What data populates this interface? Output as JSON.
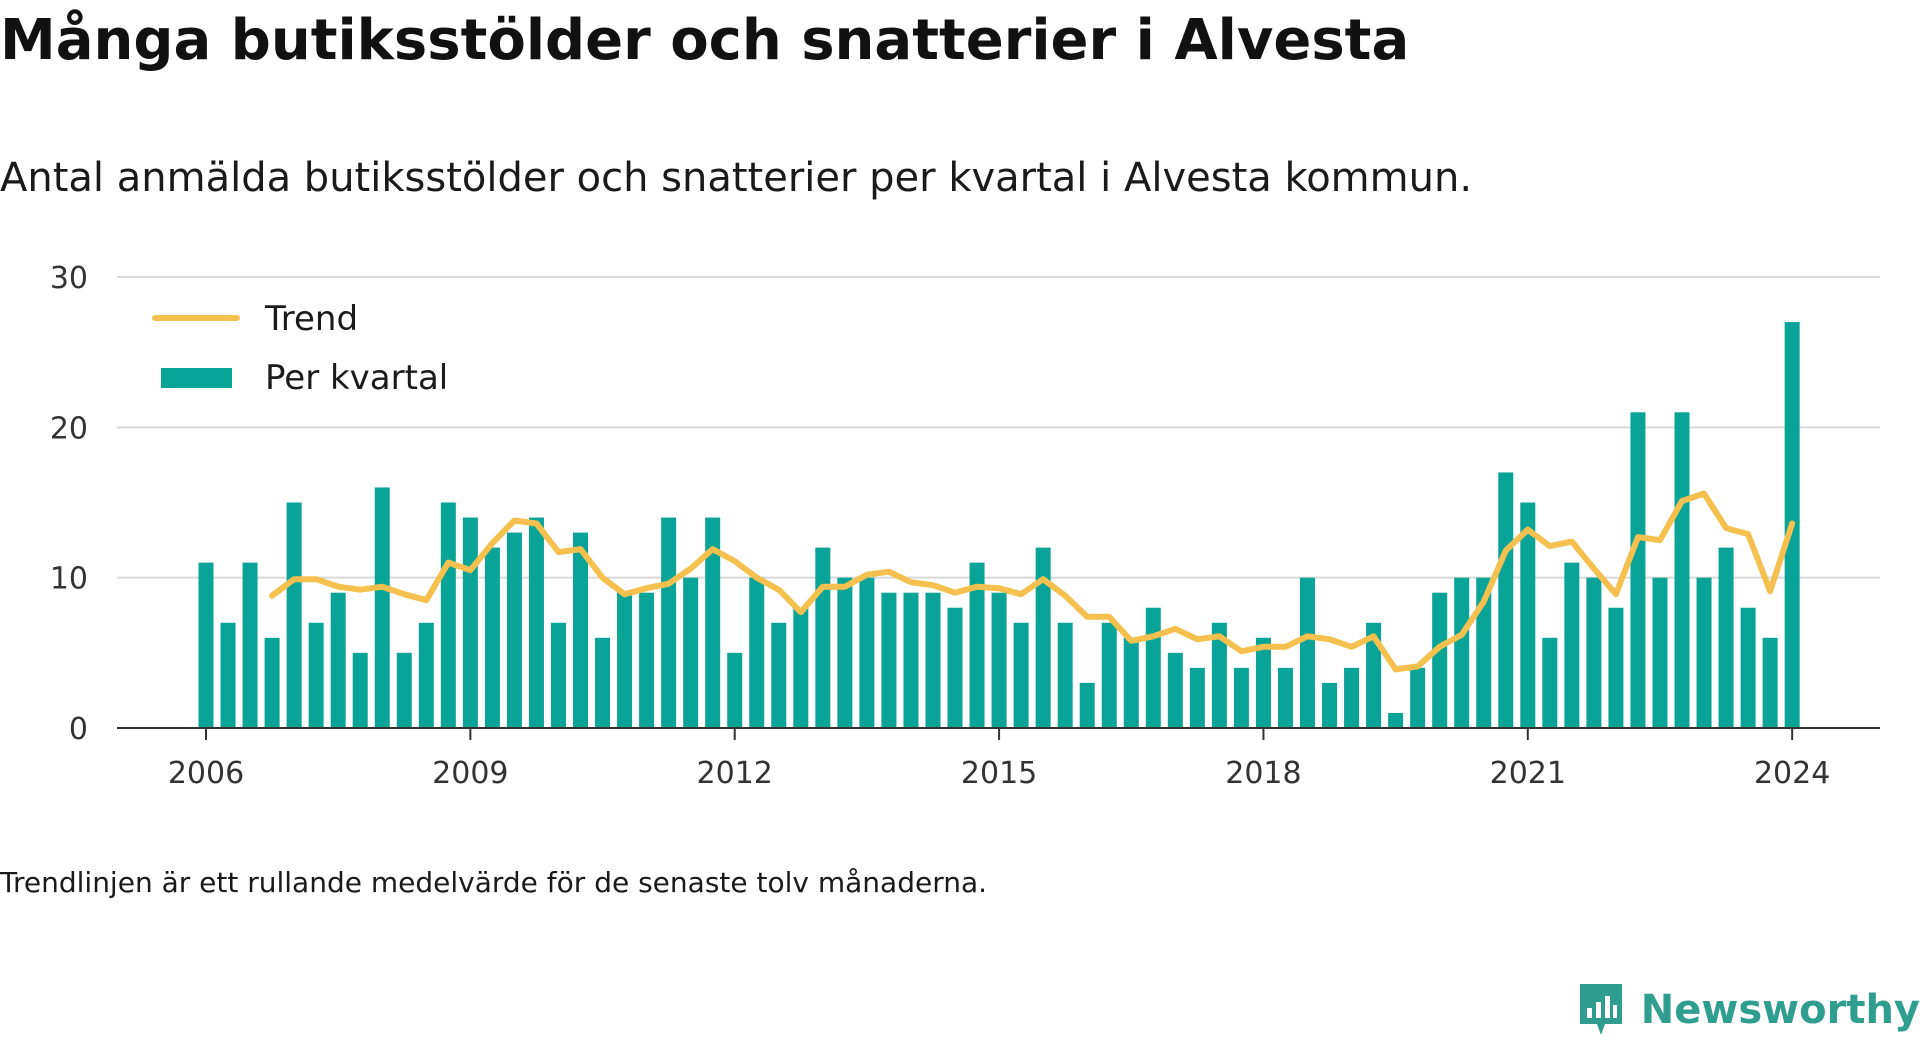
{
  "title": "Många butiksstölder och snatterier i Alvesta",
  "subtitle": "Antal anmälda butiksstölder och snatterier per kvartal i Alvesta kommun.",
  "footnote": "Trendlinjen är ett rullande medelvärde för de senaste tolv månaderna.",
  "brand": {
    "name": "Newsworthy",
    "icon": "newsworthy-logo-icon",
    "color": "#2f9e8f"
  },
  "colors": {
    "bars": "#0aa397",
    "trend": "#f6c04e",
    "grid": "#d9d9d9",
    "axis": "#333333"
  },
  "chart_data": {
    "type": "bar",
    "title": "Många butiksstölder och snatterier i Alvesta",
    "xlabel": "",
    "ylabel": "",
    "ylim": [
      0,
      30
    ],
    "yticks": [
      0,
      10,
      20,
      30
    ],
    "xticks": [
      "2006",
      "2009",
      "2012",
      "2015",
      "2018",
      "2021",
      "2024"
    ],
    "grid": true,
    "legend_position": "top-left",
    "start": "2006 Q1",
    "series": [
      {
        "name": "Per kvartal",
        "kind": "bar",
        "values": [
          11,
          7,
          11,
          6,
          15,
          7,
          9,
          5,
          16,
          5,
          7,
          15,
          14,
          12,
          13,
          14,
          7,
          13,
          6,
          9,
          9,
          14,
          10,
          14,
          5,
          10,
          7,
          8,
          12,
          10,
          10,
          9,
          9,
          9,
          8,
          11,
          9,
          7,
          12,
          7,
          3,
          7,
          6,
          8,
          5,
          4,
          7,
          4,
          6,
          4,
          10,
          3,
          4,
          7,
          1,
          4,
          9,
          10,
          10,
          17,
          15,
          6,
          11,
          10,
          8,
          21,
          10,
          21,
          10,
          12,
          8,
          6,
          27
        ]
      },
      {
        "name": "Trend",
        "kind": "line",
        "values": [
          null,
          null,
          null,
          8.8,
          9.9,
          9.9,
          9.4,
          9.2,
          9.4,
          8.9,
          8.5,
          11.0,
          10.5,
          12.3,
          13.8,
          13.6,
          11.7,
          11.9,
          10.0,
          8.9,
          9.3,
          9.6,
          10.6,
          11.9,
          11.1,
          10.0,
          9.2,
          7.7,
          9.4,
          9.4,
          10.2,
          10.4,
          9.7,
          9.5,
          9.0,
          9.4,
          9.3,
          8.9,
          9.9,
          8.8,
          7.4,
          7.4,
          5.8,
          6.1,
          6.6,
          5.9,
          6.1,
          5.1,
          5.4,
          5.4,
          6.1,
          5.9,
          5.4,
          6.1,
          3.9,
          4.1,
          5.4,
          6.2,
          8.4,
          11.8,
          13.2,
          12.1,
          12.4,
          10.6,
          8.9,
          12.7,
          12.5,
          15.1,
          15.6,
          13.3,
          12.9,
          9.1,
          13.6
        ]
      }
    ]
  }
}
